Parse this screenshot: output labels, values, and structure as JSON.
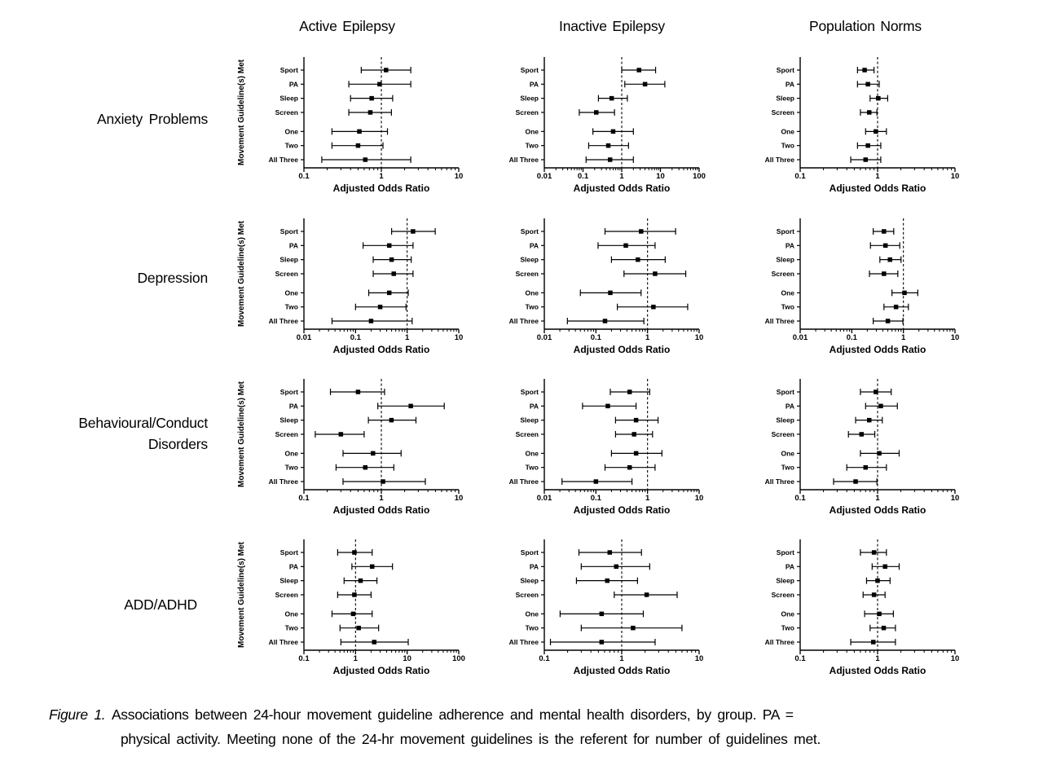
{
  "figure": {
    "column_headers": [
      "Active Epilepsy",
      "Inactive Epilepsy",
      "Population Norms"
    ],
    "row_labels": [
      "Anxiety Problems",
      "Depression",
      "Behavioural/Conduct Disorders",
      "ADD/ADHD"
    ],
    "caption": {
      "prefix": "Figure 1.",
      "line1": "Associations between 24-hour movement guideline adherence and mental health disorders, by group. PA =",
      "line2": "physical activity. Meeting none of the 24-hr movement guidelines is the referent for number of guidelines met."
    }
  },
  "chart_data": [
    {
      "type": "scatter",
      "subtype": "forest-plot",
      "outcome": "Anxiety Problems",
      "group": "Active Epilepsy",
      "xlabel": "Adjusted Odds Ratio",
      "ylabel": "Movement Guideline(s) Met",
      "xscale": "log",
      "xlim": [
        0.1,
        10
      ],
      "xticks": [
        0.1,
        1,
        10
      ],
      "reference_line": 1,
      "categories": [
        "Sport",
        "PA",
        "Sleep",
        "Screen",
        "One",
        "Two",
        "All Three"
      ],
      "odds_ratios": [
        1.15,
        0.95,
        0.75,
        0.72,
        0.52,
        0.5,
        0.62
      ],
      "ci_low": [
        0.55,
        0.38,
        0.4,
        0.38,
        0.23,
        0.23,
        0.17
      ],
      "ci_high": [
        2.4,
        2.4,
        1.4,
        1.35,
        1.2,
        1.05,
        2.4
      ]
    },
    {
      "type": "scatter",
      "subtype": "forest-plot",
      "outcome": "Anxiety Problems",
      "group": "Inactive Epilepsy",
      "xlabel": "Adjusted Odds Ratio",
      "ylabel": "",
      "xscale": "log",
      "xlim": [
        0.01,
        100
      ],
      "xticks": [
        0.01,
        0.1,
        1,
        10,
        100
      ],
      "reference_line": 1,
      "categories": [
        "Sport",
        "PA",
        "Sleep",
        "Screen",
        "One",
        "Two",
        "All Three"
      ],
      "odds_ratios": [
        2.8,
        4.0,
        0.55,
        0.22,
        0.6,
        0.45,
        0.5
      ],
      "ci_low": [
        1.0,
        1.2,
        0.25,
        0.08,
        0.18,
        0.14,
        0.12
      ],
      "ci_high": [
        7.5,
        13,
        1.4,
        0.65,
        2.0,
        1.5,
        2.0
      ]
    },
    {
      "type": "scatter",
      "subtype": "forest-plot",
      "outcome": "Anxiety Problems",
      "group": "Population Norms",
      "xlabel": "Adjusted Odds Ratio",
      "ylabel": "",
      "xscale": "log",
      "xlim": [
        0.1,
        10
      ],
      "xticks": [
        0.1,
        1,
        10
      ],
      "reference_line": 1,
      "categories": [
        "Sport",
        "PA",
        "Sleep",
        "Screen",
        "One",
        "Two",
        "All Three"
      ],
      "odds_ratios": [
        0.68,
        0.75,
        1.02,
        0.78,
        0.95,
        0.75,
        0.7
      ],
      "ci_low": [
        0.55,
        0.55,
        0.8,
        0.6,
        0.7,
        0.55,
        0.45
      ],
      "ci_high": [
        0.9,
        1.05,
        1.35,
        0.98,
        1.3,
        1.1,
        1.1
      ]
    },
    {
      "type": "scatter",
      "subtype": "forest-plot",
      "outcome": "Depression",
      "group": "Active Epilepsy",
      "xlabel": "Adjusted Odds Ratio",
      "ylabel": "Movement Guideline(s) Met",
      "xscale": "log",
      "xlim": [
        0.01,
        10
      ],
      "xticks": [
        0.01,
        0.1,
        1,
        10
      ],
      "reference_line": 1,
      "categories": [
        "Sport",
        "PA",
        "Sleep",
        "Screen",
        "One",
        "Two",
        "All Three"
      ],
      "odds_ratios": [
        1.3,
        0.45,
        0.5,
        0.55,
        0.45,
        0.3,
        0.2
      ],
      "ci_low": [
        0.5,
        0.14,
        0.22,
        0.22,
        0.18,
        0.1,
        0.035
      ],
      "ci_high": [
        3.5,
        1.3,
        1.2,
        1.3,
        1.05,
        0.95,
        1.25
      ]
    },
    {
      "type": "scatter",
      "subtype": "forest-plot",
      "outcome": "Depression",
      "group": "Inactive Epilepsy",
      "xlabel": "Adjusted Odds Ratio",
      "ylabel": "",
      "xscale": "log",
      "xlim": [
        0.01,
        10
      ],
      "xticks": [
        0.01,
        0.1,
        1,
        10
      ],
      "reference_line": 1,
      "categories": [
        "Sport",
        "PA",
        "Sleep",
        "Screen",
        "One",
        "Two",
        "All Three"
      ],
      "odds_ratios": [
        0.75,
        0.38,
        0.65,
        1.4,
        0.19,
        1.3,
        0.15
      ],
      "ci_low": [
        0.15,
        0.11,
        0.2,
        0.35,
        0.05,
        0.26,
        0.028
      ],
      "ci_high": [
        3.5,
        1.4,
        2.2,
        5.5,
        0.75,
        6.0,
        0.85
      ]
    },
    {
      "type": "scatter",
      "subtype": "forest-plot",
      "outcome": "Depression",
      "group": "Population Norms",
      "xlabel": "Adjusted Odds Ratio",
      "ylabel": "",
      "xscale": "log",
      "xlim": [
        0.01,
        10
      ],
      "xticks": [
        0.01,
        0.1,
        1,
        10
      ],
      "reference_line": 1,
      "categories": [
        "Sport",
        "PA",
        "Sleep",
        "Screen",
        "One",
        "Two",
        "All Three"
      ],
      "odds_ratios": [
        0.42,
        0.45,
        0.55,
        0.42,
        1.05,
        0.72,
        0.5
      ],
      "ci_low": [
        0.26,
        0.23,
        0.35,
        0.22,
        0.6,
        0.42,
        0.26
      ],
      "ci_high": [
        0.65,
        0.85,
        0.9,
        0.78,
        1.9,
        1.25,
        0.98
      ]
    },
    {
      "type": "scatter",
      "subtype": "forest-plot",
      "outcome": "Behavioural/Conduct Disorders",
      "group": "Active Epilepsy",
      "xlabel": "Adjusted Odds Ratio",
      "ylabel": "Movement Guideline(s) Met",
      "xscale": "log",
      "xlim": [
        0.1,
        10
      ],
      "xticks": [
        0.1,
        1,
        10
      ],
      "reference_line": 1,
      "categories": [
        "Sport",
        "PA",
        "Sleep",
        "Screen",
        "One",
        "Two",
        "All Three"
      ],
      "odds_ratios": [
        0.5,
        2.4,
        1.35,
        0.3,
        0.78,
        0.62,
        1.05
      ],
      "ci_low": [
        0.22,
        0.9,
        0.68,
        0.14,
        0.32,
        0.26,
        0.32
      ],
      "ci_high": [
        1.1,
        6.5,
        2.8,
        0.6,
        1.8,
        1.45,
        3.7
      ]
    },
    {
      "type": "scatter",
      "subtype": "forest-plot",
      "outcome": "Behavioural/Conduct Disorders",
      "group": "Inactive Epilepsy",
      "xlabel": "Adjusted Odds Ratio",
      "ylabel": "",
      "xscale": "log",
      "xlim": [
        0.01,
        10
      ],
      "xticks": [
        0.01,
        0.1,
        1,
        10
      ],
      "reference_line": 1,
      "categories": [
        "Sport",
        "PA",
        "Sleep",
        "Screen",
        "One",
        "Two",
        "All Three"
      ],
      "odds_ratios": [
        0.45,
        0.17,
        0.6,
        0.55,
        0.6,
        0.45,
        0.1
      ],
      "ci_low": [
        0.19,
        0.055,
        0.24,
        0.24,
        0.2,
        0.15,
        0.022
      ],
      "ci_high": [
        1.1,
        0.6,
        1.6,
        1.25,
        1.9,
        1.4,
        0.5
      ]
    },
    {
      "type": "scatter",
      "subtype": "forest-plot",
      "outcome": "Behavioural/Conduct Disorders",
      "group": "Population Norms",
      "xlabel": "Adjusted Odds Ratio",
      "ylabel": "",
      "xscale": "log",
      "xlim": [
        0.1,
        10
      ],
      "xticks": [
        0.1,
        1,
        10
      ],
      "reference_line": 1,
      "categories": [
        "Sport",
        "PA",
        "Sleep",
        "Screen",
        "One",
        "Two",
        "All Three"
      ],
      "odds_ratios": [
        0.95,
        1.1,
        0.78,
        0.62,
        1.05,
        0.7,
        0.52
      ],
      "ci_low": [
        0.6,
        0.7,
        0.52,
        0.42,
        0.6,
        0.4,
        0.27
      ],
      "ci_high": [
        1.5,
        1.8,
        1.15,
        0.92,
        1.9,
        1.3,
        0.98
      ]
    },
    {
      "type": "scatter",
      "subtype": "forest-plot",
      "outcome": "ADD/ADHD",
      "group": "Active Epilepsy",
      "xlabel": "Adjusted Odds Ratio",
      "ylabel": "Movement Guideline(s) Met",
      "xscale": "log",
      "xlim": [
        0.1,
        100
      ],
      "xticks": [
        0.1,
        1,
        10,
        100
      ],
      "reference_line": 1,
      "categories": [
        "Sport",
        "PA",
        "Sleep",
        "Screen",
        "One",
        "Two",
        "All Three"
      ],
      "odds_ratios": [
        0.95,
        2.1,
        1.25,
        0.95,
        0.9,
        1.15,
        2.3
      ],
      "ci_low": [
        0.45,
        0.85,
        0.6,
        0.45,
        0.35,
        0.5,
        0.52
      ],
      "ci_high": [
        2.1,
        5.2,
        2.6,
        2.0,
        2.1,
        2.8,
        10.5
      ]
    },
    {
      "type": "scatter",
      "subtype": "forest-plot",
      "outcome": "ADD/ADHD",
      "group": "Inactive Epilepsy",
      "xlabel": "Adjusted Odds Ratio",
      "ylabel": "",
      "xscale": "log",
      "xlim": [
        0.1,
        10
      ],
      "xticks": [
        0.1,
        1,
        10
      ],
      "reference_line": 1,
      "categories": [
        "Sport",
        "PA",
        "Sleep",
        "Screen",
        "One",
        "Two",
        "All Three"
      ],
      "odds_ratios": [
        0.7,
        0.85,
        0.65,
        2.1,
        0.55,
        1.4,
        0.55
      ],
      "ci_low": [
        0.28,
        0.3,
        0.26,
        0.8,
        0.16,
        0.3,
        0.12
      ],
      "ci_high": [
        1.8,
        2.3,
        1.6,
        5.2,
        1.9,
        6.0,
        2.7
      ]
    },
    {
      "type": "scatter",
      "subtype": "forest-plot",
      "outcome": "ADD/ADHD",
      "group": "Population Norms",
      "xlabel": "Adjusted Odds Ratio",
      "ylabel": "",
      "xscale": "log",
      "xlim": [
        0.1,
        10
      ],
      "xticks": [
        0.1,
        1,
        10
      ],
      "reference_line": 1,
      "categories": [
        "Sport",
        "PA",
        "Sleep",
        "Screen",
        "One",
        "Two",
        "All Three"
      ],
      "odds_ratios": [
        0.9,
        1.25,
        1.0,
        0.9,
        1.05,
        1.2,
        0.88
      ],
      "ci_low": [
        0.6,
        0.85,
        0.72,
        0.65,
        0.68,
        0.8,
        0.45
      ],
      "ci_high": [
        1.3,
        1.9,
        1.45,
        1.25,
        1.6,
        1.7,
        1.7
      ]
    }
  ]
}
